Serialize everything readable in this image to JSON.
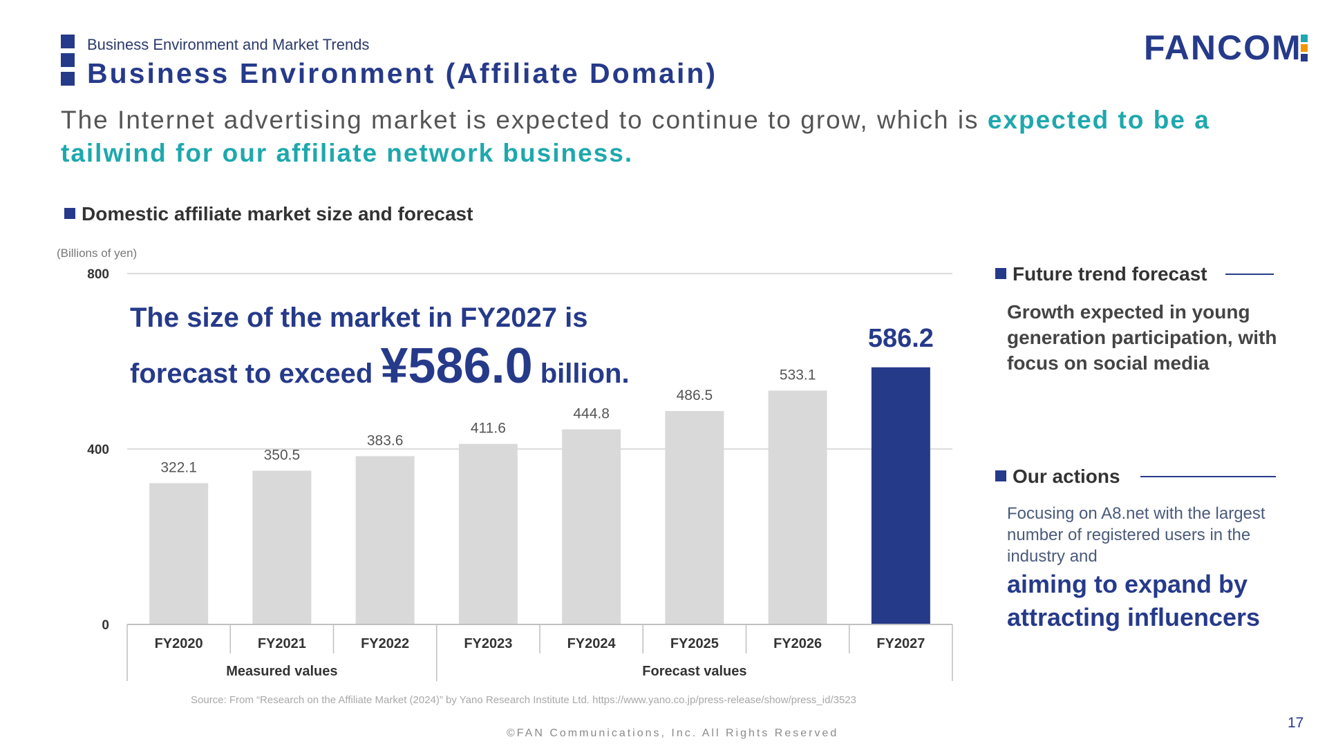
{
  "header": {
    "eyebrow": "Business Environment and Market Trends",
    "title": "Business Environment (Affiliate Domain)",
    "logo_text": "FANCOM",
    "logo_colors": [
      "#1ea8ad",
      "#f29600",
      "#263a8a"
    ]
  },
  "lead": {
    "plain": "The Internet advertising market is expected to continue to grow, which is ",
    "highlight": "expected to be a tailwind for our affiliate network business."
  },
  "chart_heading": "Domestic affiliate market size and forecast",
  "chart_data": {
    "type": "bar",
    "unit_label": "(Billions of yen)",
    "categories": [
      "FY2020",
      "FY2021",
      "FY2022",
      "FY2023",
      "FY2024",
      "FY2025",
      "FY2026",
      "FY2027"
    ],
    "values": [
      322.1,
      350.5,
      383.6,
      411.6,
      444.8,
      486.5,
      533.1,
      586.2
    ],
    "value_labels": [
      "322.1",
      "350.5",
      "383.6",
      "411.6",
      "444.8",
      "486.5",
      "533.1",
      "586.2"
    ],
    "y_ticks": [
      "0",
      "400",
      "800"
    ],
    "ylim": [
      0,
      800
    ],
    "grid": true,
    "highlight_index": 7,
    "groups": [
      {
        "label": "Measured values",
        "start": 0,
        "end": 2
      },
      {
        "label": "Forecast values",
        "start": 3,
        "end": 7
      }
    ],
    "colors": {
      "bar": "#d9d9d9",
      "highlight": "#263a8a",
      "grid": "#d0d0d0",
      "axis": "#bfbfbf"
    }
  },
  "callout": {
    "line1": "The size of the market in FY2027 is",
    "line2_pre": "forecast to exceed ",
    "big": "¥586.0",
    "line2_post": " billion."
  },
  "source": "Source: From “Research on the Affiliate Market (2024)” by Yano Research Institute Ltd. https://www.yano.co.jp/press-release/show/press_id/3523",
  "copyright": "©FAN Communications, Inc. All Rights Reserved",
  "page_number": "17",
  "panel": {
    "trend_heading": "Future trend forecast",
    "trend_body": "Growth expected in young generation participation, with focus on social media",
    "actions_heading": "Our actions",
    "actions_body": "Focusing on A8.net with the largest number of registered users in the industry and",
    "actions_emphasis": "aiming to expand by attracting influencers"
  }
}
